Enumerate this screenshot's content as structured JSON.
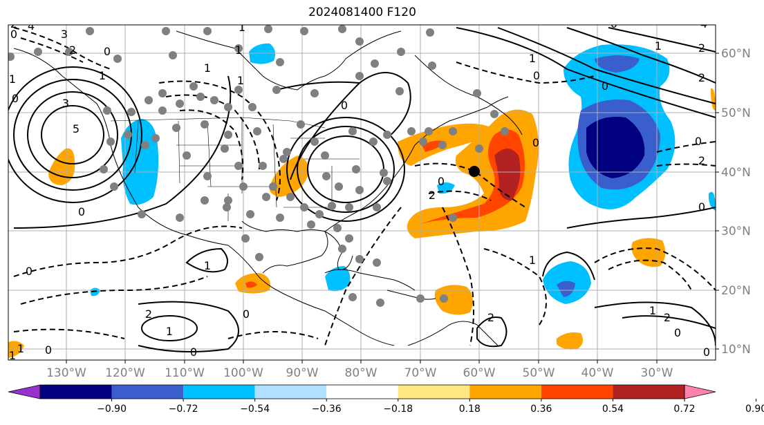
{
  "title": "2024081400 F120",
  "lon_ticks": [
    "130°W",
    "120°W",
    "110°W",
    "100°W",
    "90°W",
    "80°W",
    "70°W",
    "60°W",
    "50°W",
    "40°W",
    "30°W"
  ],
  "lat_ticks": [
    "60°N",
    "50°N",
    "40°N",
    "30°N",
    "20°N",
    "10°N"
  ],
  "colorbar": {
    "ticks": [
      "−0.90",
      "−0.72",
      "−0.54",
      "−0.36",
      "−0.18",
      "0.18",
      "0.36",
      "0.54",
      "0.72",
      "0.90"
    ],
    "colors": [
      "#9932cc",
      "#000080",
      "#3a5fcd",
      "#00bfff",
      "#b0e0ff",
      "#ffffff",
      "#ffe680",
      "#ffa500",
      "#ff4500",
      "#b22222",
      "#ff82ab"
    ]
  },
  "contour_labels": [
    "4",
    "3",
    "2",
    "0",
    "1",
    "3",
    "5",
    "0",
    "1",
    "1",
    "1",
    "0",
    "0",
    "2",
    "0",
    "1",
    "0",
    "2",
    "0",
    "2",
    "1",
    "1",
    "0",
    "2",
    "0",
    "4",
    "0",
    "1",
    "2",
    "0",
    "1",
    "2",
    "0",
    "1",
    "2",
    "0",
    "0",
    "1",
    "1",
    "0",
    "0",
    "1",
    "2",
    "2",
    "0",
    "0",
    "1"
  ],
  "colors": {
    "axis_gray": "#808080",
    "grid": "#b0b0b0"
  }
}
